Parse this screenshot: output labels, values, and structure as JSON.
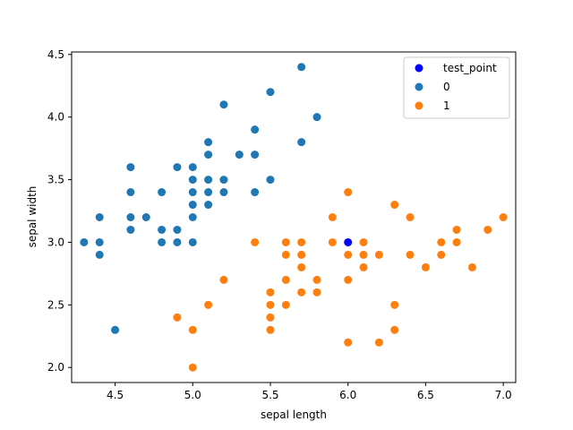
{
  "chart_data": {
    "type": "scatter",
    "title": "",
    "xlabel": "sepal length",
    "ylabel": "sepal width",
    "xlim": [
      4.22,
      7.08
    ],
    "ylim": [
      1.88,
      4.52
    ],
    "xticks": [
      4.5,
      5.0,
      5.5,
      6.0,
      6.5,
      7.0
    ],
    "xtick_labels": [
      "4.5",
      "5.0",
      "5.5",
      "6.0",
      "6.5",
      "7.0"
    ],
    "yticks": [
      2.0,
      2.5,
      3.0,
      3.5,
      4.0,
      4.5
    ],
    "ytick_labels": [
      "2.0",
      "2.5",
      "3.0",
      "3.5",
      "4.0",
      "4.5"
    ],
    "grid": false,
    "legend_position": "top-right",
    "series": [
      {
        "name": "test_point",
        "color": "#0000ff",
        "points": [
          [
            6.0,
            3.0
          ]
        ]
      },
      {
        "name": "0",
        "color": "#1f77b4",
        "points": [
          [
            4.3,
            3.0
          ],
          [
            4.4,
            3.2
          ],
          [
            4.4,
            3.0
          ],
          [
            4.4,
            2.9
          ],
          [
            4.5,
            2.3
          ],
          [
            4.6,
            3.6
          ],
          [
            4.6,
            3.4
          ],
          [
            4.6,
            3.2
          ],
          [
            4.6,
            3.1
          ],
          [
            4.7,
            3.2
          ],
          [
            4.8,
            3.4
          ],
          [
            4.8,
            3.1
          ],
          [
            4.8,
            3.0
          ],
          [
            4.9,
            3.6
          ],
          [
            4.9,
            3.1
          ],
          [
            4.9,
            3.0
          ],
          [
            5.0,
            3.6
          ],
          [
            5.0,
            3.5
          ],
          [
            5.0,
            3.4
          ],
          [
            5.0,
            3.3
          ],
          [
            5.0,
            3.2
          ],
          [
            5.0,
            3.0
          ],
          [
            5.1,
            3.8
          ],
          [
            5.1,
            3.7
          ],
          [
            5.1,
            3.5
          ],
          [
            5.1,
            3.4
          ],
          [
            5.1,
            3.3
          ],
          [
            5.2,
            4.1
          ],
          [
            5.2,
            3.5
          ],
          [
            5.2,
            3.4
          ],
          [
            5.3,
            3.7
          ],
          [
            5.4,
            3.9
          ],
          [
            5.4,
            3.7
          ],
          [
            5.4,
            3.4
          ],
          [
            5.5,
            4.2
          ],
          [
            5.5,
            3.5
          ],
          [
            5.7,
            4.4
          ],
          [
            5.7,
            3.8
          ],
          [
            5.8,
            4.0
          ]
        ]
      },
      {
        "name": "1",
        "color": "#ff7f0e",
        "points": [
          [
            4.9,
            2.4
          ],
          [
            5.0,
            2.3
          ],
          [
            5.0,
            2.0
          ],
          [
            5.1,
            2.5
          ],
          [
            5.2,
            2.7
          ],
          [
            5.4,
            3.0
          ],
          [
            5.5,
            2.6
          ],
          [
            5.5,
            2.5
          ],
          [
            5.5,
            2.4
          ],
          [
            5.5,
            2.3
          ],
          [
            5.6,
            3.0
          ],
          [
            5.6,
            2.9
          ],
          [
            5.6,
            2.7
          ],
          [
            5.6,
            2.5
          ],
          [
            5.7,
            3.0
          ],
          [
            5.7,
            2.9
          ],
          [
            5.7,
            2.8
          ],
          [
            5.7,
            2.6
          ],
          [
            5.8,
            2.7
          ],
          [
            5.8,
            2.6
          ],
          [
            5.9,
            3.2
          ],
          [
            5.9,
            3.0
          ],
          [
            6.0,
            3.4
          ],
          [
            6.0,
            2.9
          ],
          [
            6.0,
            2.7
          ],
          [
            6.0,
            2.2
          ],
          [
            6.1,
            3.0
          ],
          [
            6.1,
            2.9
          ],
          [
            6.1,
            2.8
          ],
          [
            6.2,
            2.9
          ],
          [
            6.2,
            2.2
          ],
          [
            6.3,
            3.3
          ],
          [
            6.3,
            2.5
          ],
          [
            6.3,
            2.3
          ],
          [
            6.4,
            3.2
          ],
          [
            6.4,
            2.9
          ],
          [
            6.5,
            2.8
          ],
          [
            6.6,
            3.0
          ],
          [
            6.6,
            2.9
          ],
          [
            6.7,
            3.1
          ],
          [
            6.7,
            3.0
          ],
          [
            6.8,
            2.8
          ],
          [
            6.9,
            3.1
          ],
          [
            7.0,
            3.2
          ]
        ]
      }
    ]
  }
}
